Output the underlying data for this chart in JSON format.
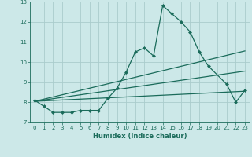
{
  "title": "",
  "xlabel": "Humidex (Indice chaleur)",
  "ylabel": "",
  "background_color": "#cce8e8",
  "grid_color": "#aacccc",
  "line_color": "#1a6b5a",
  "xlim": [
    -0.5,
    23.5
  ],
  "ylim": [
    7,
    13
  ],
  "x_ticks": [
    0,
    1,
    2,
    3,
    4,
    5,
    6,
    7,
    8,
    9,
    10,
    11,
    12,
    13,
    14,
    15,
    16,
    17,
    18,
    19,
    20,
    21,
    22,
    23
  ],
  "y_ticks": [
    7,
    8,
    9,
    10,
    11,
    12,
    13
  ],
  "series1_x": [
    0,
    1,
    2,
    3,
    4,
    5,
    6,
    7,
    8,
    9,
    10,
    11,
    12,
    13,
    14,
    15,
    16,
    17,
    18,
    19,
    21,
    22,
    23
  ],
  "series1_y": [
    8.1,
    7.8,
    7.5,
    7.5,
    7.5,
    7.6,
    7.6,
    7.6,
    8.2,
    8.7,
    9.5,
    10.5,
    10.7,
    10.3,
    12.8,
    12.4,
    12.0,
    11.5,
    10.5,
    9.8,
    8.9,
    8.0,
    8.6
  ],
  "series2_x": [
    0,
    23
  ],
  "series2_y": [
    8.05,
    10.55
  ],
  "series3_x": [
    0,
    23
  ],
  "series3_y": [
    8.05,
    9.55
  ],
  "series4_x": [
    0,
    23
  ],
  "series4_y": [
    8.05,
    8.55
  ],
  "markersize": 2.5,
  "linewidth": 0.9,
  "trend_linewidth": 0.9
}
